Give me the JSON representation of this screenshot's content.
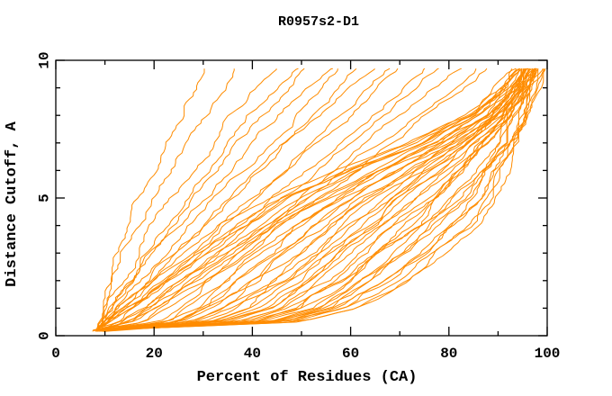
{
  "chart_data": {
    "type": "line",
    "title": "R0957s2-D1",
    "xlabel": "Percent of Residues (CA)",
    "ylabel": "Distance Cutoff, A",
    "xlim": [
      0,
      100
    ],
    "ylim": [
      0,
      10
    ],
    "x_major_ticks": [
      0,
      20,
      40,
      60,
      80,
      100
    ],
    "x_tick_labels": [
      "0",
      "20",
      "40",
      "60",
      "80",
      "100"
    ],
    "x_minor_ticks": [
      10,
      30,
      50,
      70,
      90
    ],
    "y_major_ticks": [
      0,
      5,
      10
    ],
    "y_tick_labels": [
      "0",
      "5",
      "10"
    ],
    "y_minor_ticks": [
      1,
      2,
      3,
      4,
      6,
      7,
      8,
      9
    ],
    "grid": false,
    "legend": null,
    "line_color": "#ff8c00",
    "frame_color": "#000000",
    "background_color": "#ffffff",
    "description": "Cumulative model-accuracy curves: fraction of CA residues (x, %) under a distance cutoff (y, Angstroms). All curves converge near (8%, 0.2A); a dense bundle of good models sweeps right and climbs steeply near 90-99%, while ~16 outlier models rise early between 10% and 40%.",
    "series_model": {
      "n_curves_total": 58,
      "curve_start_y": 0.18,
      "curve_end_y": 9.7,
      "y_anchors": [
        0.2,
        0.5,
        1.0,
        1.5,
        2.0,
        3.0,
        4.0,
        5.0,
        6.0,
        7.0,
        8.0,
        9.0,
        9.7
      ],
      "bundle_count": 42,
      "bundle_best_x": [
        9.0,
        50.0,
        62.0,
        67.0,
        72.0,
        79.0,
        85.0,
        89.5,
        92.0,
        94.0,
        95.5,
        97.0,
        98.5
      ],
      "bundle_worst_x": [
        8.0,
        10.0,
        13.0,
        16.0,
        19.0,
        26.0,
        34.0,
        44.0,
        57.0,
        72.0,
        84.0,
        91.0,
        93.5
      ],
      "bundle_bias_power": 0.85,
      "outlier_start_x": 8.5,
      "outlier_top_y": 9.7,
      "outlier_top_x": [
        30,
        38,
        44,
        48,
        52,
        55,
        58,
        61,
        64,
        67,
        70,
        74,
        78,
        82,
        85,
        88
      ],
      "outlier_power": [
        1.5,
        1.35,
        1.25,
        1.2,
        1.15,
        1.1,
        1.05,
        1.0,
        1.0,
        0.95,
        0.95,
        0.9,
        0.9,
        0.85,
        0.85,
        0.8
      ],
      "jitter_seed": 11
    }
  }
}
